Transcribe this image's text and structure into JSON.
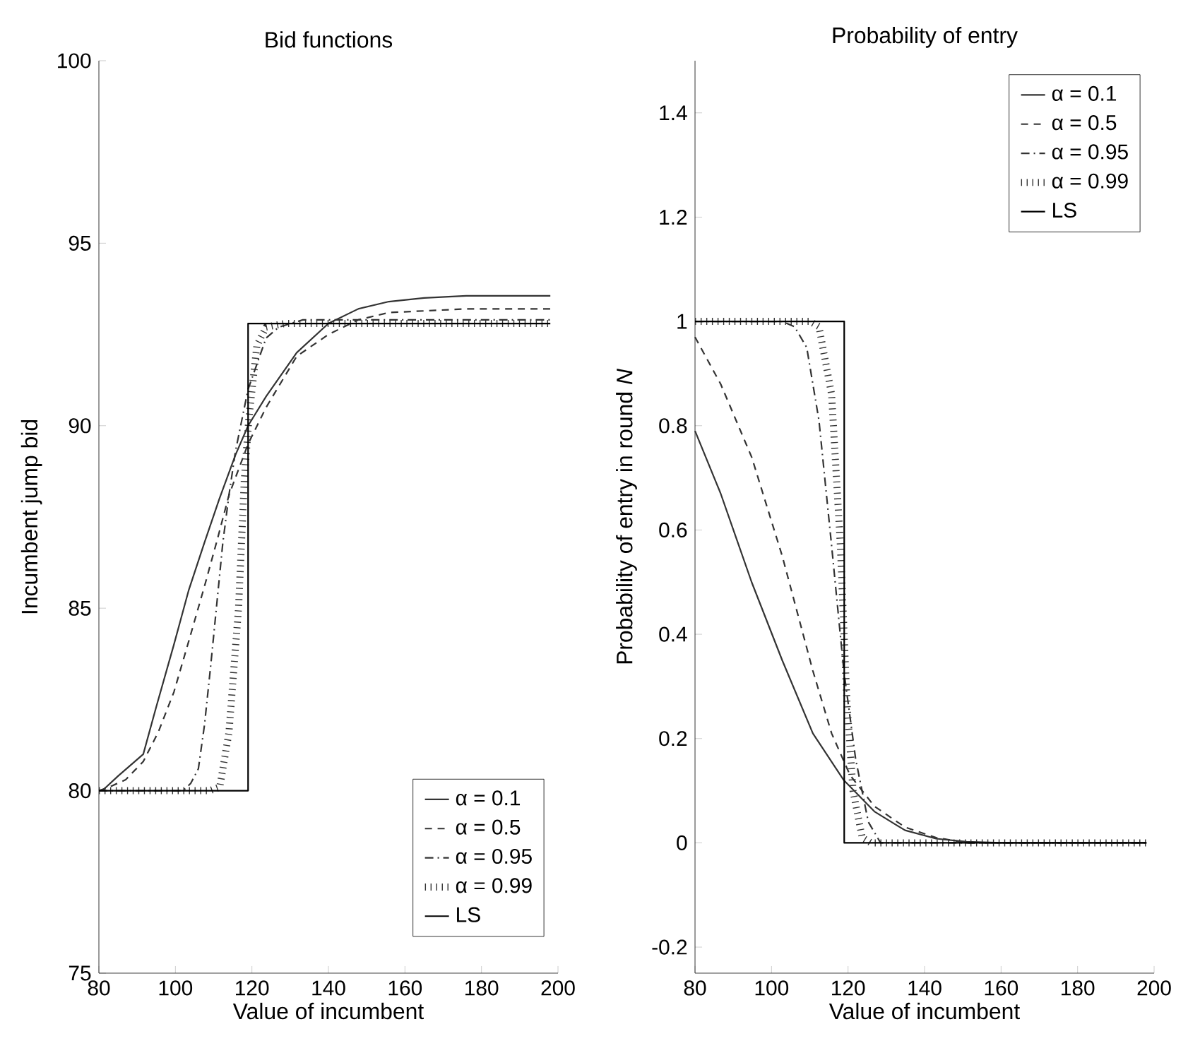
{
  "chart_data": [
    {
      "type": "line",
      "title": "Bid functions",
      "xlabel": "Value of incumbent",
      "ylabel": "Incumbent jump bid",
      "xlim": [
        80,
        200
      ],
      "ylim": [
        75,
        100
      ],
      "xticks": [
        80,
        100,
        120,
        140,
        160,
        180,
        200
      ],
      "yticks": [
        75,
        80,
        85,
        90,
        95,
        100
      ],
      "grid": false,
      "legend": "bottom right",
      "series": [
        {
          "name": "α = 0.1",
          "color": "#333333",
          "line_style": "solid",
          "x": [
            80.9,
            85,
            91.6,
            95,
            99.6,
            103.5,
            107.6,
            111.5,
            115.7,
            119,
            123.7,
            131.7,
            140,
            147.8,
            155.8,
            165,
            176,
            198
          ],
          "values": [
            80,
            80.4,
            81.0,
            82.3,
            84.0,
            85.5,
            86.8,
            88.0,
            89.2,
            90.0,
            90.8,
            92.0,
            92.8,
            93.2,
            93.4,
            93.5,
            93.56,
            93.56
          ]
        },
        {
          "name": "α = 0.5",
          "color": "#333333",
          "line_style": "dashed",
          "x": [
            80,
            82.7,
            87,
            91.6,
            95.5,
            99.6,
            103.5,
            107.6,
            111,
            114,
            119,
            123.7,
            131.7,
            140,
            147.8,
            155.8,
            176,
            198
          ],
          "values": [
            80,
            80.1,
            80.3,
            80.8,
            81.6,
            82.7,
            84.1,
            85.6,
            86.9,
            88.1,
            89.5,
            90.5,
            91.9,
            92.5,
            92.9,
            93.1,
            93.2,
            93.2
          ]
        },
        {
          "name": "α = 0.95",
          "color": "#333333",
          "line_style": "dashdot",
          "x": [
            80,
            102,
            104,
            106,
            107.6,
            109.2,
            110.8,
            112.4,
            114,
            115.7,
            119,
            123.7,
            127,
            133.3,
            150,
            198
          ],
          "values": [
            80,
            80,
            80.2,
            80.6,
            81.8,
            83.4,
            85.1,
            86.8,
            88.1,
            89.3,
            91.0,
            92.4,
            92.7,
            92.9,
            92.9,
            92.9
          ]
        },
        {
          "name": "α = 0.99",
          "color": "#333333",
          "line_style": "dotted",
          "x": [
            80,
            109,
            111.6,
            114,
            116.5,
            118,
            119.2,
            121.3,
            123.7,
            128.5,
            198
          ],
          "values": [
            80,
            80,
            80.1,
            81.6,
            85.0,
            88.5,
            90.2,
            92.2,
            92.7,
            92.8,
            92.8
          ]
        },
        {
          "name": "LS",
          "color": "#000000",
          "line_style": "solid",
          "x": [
            80,
            119,
            119,
            198
          ],
          "values": [
            80,
            80,
            92.8,
            92.8
          ]
        }
      ]
    },
    {
      "type": "line",
      "title": "Probability of entry",
      "xlabel": "Value of incumbent",
      "ylabel": "Probability of entry in round *N*",
      "xlim": [
        80,
        200
      ],
      "ylim": [
        -0.25,
        1.5
      ],
      "xticks": [
        80,
        100,
        120,
        140,
        160,
        180,
        200
      ],
      "yticks": [
        -0.2,
        0,
        0.2,
        0.4,
        0.6,
        0.8,
        1,
        1.2,
        1.4
      ],
      "grid": false,
      "legend": "top right",
      "series": [
        {
          "name": "α = 0.1",
          "color": "#333333",
          "line_style": "solid",
          "x": [
            80,
            86.7,
            94.8,
            102.8,
            110.8,
            118.9,
            126.9,
            134.9,
            143,
            151,
            160,
            198
          ],
          "values": [
            0.79,
            0.67,
            0.5,
            0.35,
            0.21,
            0.12,
            0.06,
            0.024,
            0.008,
            0.002,
            0,
            0
          ]
        },
        {
          "name": "α = 0.5",
          "color": "#333333",
          "line_style": "dashed",
          "x": [
            80,
            86.7,
            94.8,
            102.8,
            110.8,
            115.7,
            120.5,
            126.9,
            134.9,
            143,
            151,
            198
          ],
          "values": [
            0.97,
            0.88,
            0.74,
            0.55,
            0.33,
            0.21,
            0.13,
            0.07,
            0.03,
            0.01,
            0,
            0
          ]
        },
        {
          "name": "α = 0.95",
          "color": "#333333",
          "line_style": "dashdot",
          "x": [
            80,
            102.8,
            106,
            109.2,
            112.4,
            115.7,
            118.9,
            122,
            125.3,
            128.5,
            198
          ],
          "values": [
            1,
            1,
            0.99,
            0.95,
            0.81,
            0.57,
            0.33,
            0.16,
            0.04,
            0,
            0
          ]
        },
        {
          "name": "α = 0.99",
          "color": "#333333",
          "line_style": "dotted",
          "x": [
            80,
            110,
            112.4,
            115.7,
            118,
            119.7,
            121.3,
            123.7,
            126,
            198
          ],
          "values": [
            1,
            1,
            0.99,
            0.86,
            0.57,
            0.27,
            0.1,
            0.01,
            0,
            0
          ]
        },
        {
          "name": "LS",
          "color": "#000000",
          "line_style": "solid",
          "x": [
            80,
            119,
            119,
            198
          ],
          "values": [
            1,
            1,
            0,
            0
          ]
        }
      ]
    }
  ]
}
